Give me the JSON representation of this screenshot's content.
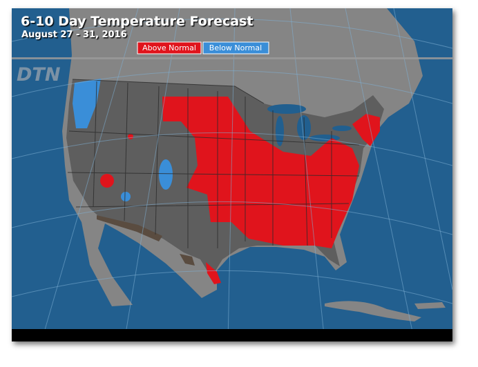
{
  "header": {
    "title": "6-10 Day Temperature Forecast",
    "subtitle": "August 27 - 31, 2016",
    "logo": "DTN"
  },
  "legend": [
    {
      "label": "Above Normal",
      "color": "#e0141c"
    },
    {
      "label": "Below Normal",
      "color": "#3a8ed8"
    }
  ]
}
